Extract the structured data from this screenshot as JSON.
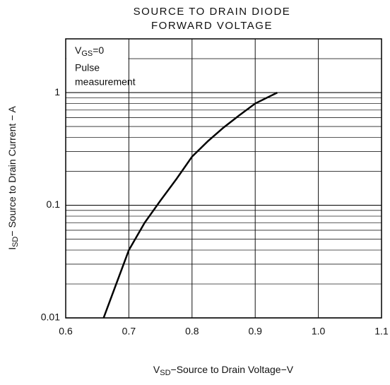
{
  "chart_data": {
    "type": "line",
    "title_lines": [
      "SOURCE TO DRAIN DIODE",
      "FORWARD VOLTAGE"
    ],
    "annotation": {
      "main": "V",
      "sub": "GS",
      "rest": "=0",
      "lines": [
        "Pulse",
        "measurement"
      ]
    },
    "xlabel": {
      "main": "V",
      "sub": "SD",
      "rest": "−Source to Drain Voltage−V"
    },
    "ylabel": {
      "main": "I",
      "sub": "SD",
      "rest": "− Source to Drain Current − A"
    },
    "x": [
      0.66,
      0.68,
      0.7,
      0.725,
      0.75,
      0.775,
      0.8,
      0.825,
      0.85,
      0.875,
      0.9,
      0.935
    ],
    "values": [
      0.01,
      0.02,
      0.04,
      0.07,
      0.11,
      0.17,
      0.27,
      0.37,
      0.49,
      0.63,
      0.8,
      1.0
    ],
    "color": "#000000",
    "xlim": [
      0.6,
      1.1
    ],
    "xticks": [
      0.6,
      0.7,
      0.8,
      0.9,
      {
        "value": 1.0,
        "label": "1.0"
      },
      1.1
    ],
    "ylim": [
      0.01,
      3
    ],
    "yticks": [
      0.01,
      0.1,
      1
    ],
    "y_minor_ticks": [
      0.02,
      0.03,
      0.04,
      0.05,
      0.06,
      0.07,
      0.08,
      0.09,
      0.2,
      0.3,
      0.4,
      0.5,
      0.6,
      0.7,
      0.8,
      0.9,
      2,
      3
    ],
    "log_y": true,
    "grid": true
  }
}
